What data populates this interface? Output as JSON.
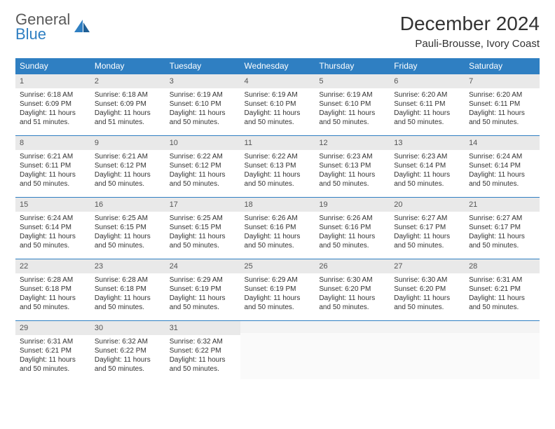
{
  "logo": {
    "top": "General",
    "bottom": "Blue"
  },
  "title": "December 2024",
  "location": "Pauli-Brousse, Ivory Coast",
  "colors": {
    "header_bg": "#2f7fc2",
    "header_text": "#ffffff",
    "daynum_bg": "#e9e9e9",
    "border": "#2f7fc2",
    "logo_blue": "#2f7fc2",
    "text": "#333333"
  },
  "weekdays": [
    "Sunday",
    "Monday",
    "Tuesday",
    "Wednesday",
    "Thursday",
    "Friday",
    "Saturday"
  ],
  "days": [
    {
      "n": "1",
      "sunrise": "Sunrise: 6:18 AM",
      "sunset": "Sunset: 6:09 PM",
      "daylight": "Daylight: 11 hours and 51 minutes."
    },
    {
      "n": "2",
      "sunrise": "Sunrise: 6:18 AM",
      "sunset": "Sunset: 6:09 PM",
      "daylight": "Daylight: 11 hours and 51 minutes."
    },
    {
      "n": "3",
      "sunrise": "Sunrise: 6:19 AM",
      "sunset": "Sunset: 6:10 PM",
      "daylight": "Daylight: 11 hours and 50 minutes."
    },
    {
      "n": "4",
      "sunrise": "Sunrise: 6:19 AM",
      "sunset": "Sunset: 6:10 PM",
      "daylight": "Daylight: 11 hours and 50 minutes."
    },
    {
      "n": "5",
      "sunrise": "Sunrise: 6:19 AM",
      "sunset": "Sunset: 6:10 PM",
      "daylight": "Daylight: 11 hours and 50 minutes."
    },
    {
      "n": "6",
      "sunrise": "Sunrise: 6:20 AM",
      "sunset": "Sunset: 6:11 PM",
      "daylight": "Daylight: 11 hours and 50 minutes."
    },
    {
      "n": "7",
      "sunrise": "Sunrise: 6:20 AM",
      "sunset": "Sunset: 6:11 PM",
      "daylight": "Daylight: 11 hours and 50 minutes."
    },
    {
      "n": "8",
      "sunrise": "Sunrise: 6:21 AM",
      "sunset": "Sunset: 6:11 PM",
      "daylight": "Daylight: 11 hours and 50 minutes."
    },
    {
      "n": "9",
      "sunrise": "Sunrise: 6:21 AM",
      "sunset": "Sunset: 6:12 PM",
      "daylight": "Daylight: 11 hours and 50 minutes."
    },
    {
      "n": "10",
      "sunrise": "Sunrise: 6:22 AM",
      "sunset": "Sunset: 6:12 PM",
      "daylight": "Daylight: 11 hours and 50 minutes."
    },
    {
      "n": "11",
      "sunrise": "Sunrise: 6:22 AM",
      "sunset": "Sunset: 6:13 PM",
      "daylight": "Daylight: 11 hours and 50 minutes."
    },
    {
      "n": "12",
      "sunrise": "Sunrise: 6:23 AM",
      "sunset": "Sunset: 6:13 PM",
      "daylight": "Daylight: 11 hours and 50 minutes."
    },
    {
      "n": "13",
      "sunrise": "Sunrise: 6:23 AM",
      "sunset": "Sunset: 6:14 PM",
      "daylight": "Daylight: 11 hours and 50 minutes."
    },
    {
      "n": "14",
      "sunrise": "Sunrise: 6:24 AM",
      "sunset": "Sunset: 6:14 PM",
      "daylight": "Daylight: 11 hours and 50 minutes."
    },
    {
      "n": "15",
      "sunrise": "Sunrise: 6:24 AM",
      "sunset": "Sunset: 6:14 PM",
      "daylight": "Daylight: 11 hours and 50 minutes."
    },
    {
      "n": "16",
      "sunrise": "Sunrise: 6:25 AM",
      "sunset": "Sunset: 6:15 PM",
      "daylight": "Daylight: 11 hours and 50 minutes."
    },
    {
      "n": "17",
      "sunrise": "Sunrise: 6:25 AM",
      "sunset": "Sunset: 6:15 PM",
      "daylight": "Daylight: 11 hours and 50 minutes."
    },
    {
      "n": "18",
      "sunrise": "Sunrise: 6:26 AM",
      "sunset": "Sunset: 6:16 PM",
      "daylight": "Daylight: 11 hours and 50 minutes."
    },
    {
      "n": "19",
      "sunrise": "Sunrise: 6:26 AM",
      "sunset": "Sunset: 6:16 PM",
      "daylight": "Daylight: 11 hours and 50 minutes."
    },
    {
      "n": "20",
      "sunrise": "Sunrise: 6:27 AM",
      "sunset": "Sunset: 6:17 PM",
      "daylight": "Daylight: 11 hours and 50 minutes."
    },
    {
      "n": "21",
      "sunrise": "Sunrise: 6:27 AM",
      "sunset": "Sunset: 6:17 PM",
      "daylight": "Daylight: 11 hours and 50 minutes."
    },
    {
      "n": "22",
      "sunrise": "Sunrise: 6:28 AM",
      "sunset": "Sunset: 6:18 PM",
      "daylight": "Daylight: 11 hours and 50 minutes."
    },
    {
      "n": "23",
      "sunrise": "Sunrise: 6:28 AM",
      "sunset": "Sunset: 6:18 PM",
      "daylight": "Daylight: 11 hours and 50 minutes."
    },
    {
      "n": "24",
      "sunrise": "Sunrise: 6:29 AM",
      "sunset": "Sunset: 6:19 PM",
      "daylight": "Daylight: 11 hours and 50 minutes."
    },
    {
      "n": "25",
      "sunrise": "Sunrise: 6:29 AM",
      "sunset": "Sunset: 6:19 PM",
      "daylight": "Daylight: 11 hours and 50 minutes."
    },
    {
      "n": "26",
      "sunrise": "Sunrise: 6:30 AM",
      "sunset": "Sunset: 6:20 PM",
      "daylight": "Daylight: 11 hours and 50 minutes."
    },
    {
      "n": "27",
      "sunrise": "Sunrise: 6:30 AM",
      "sunset": "Sunset: 6:20 PM",
      "daylight": "Daylight: 11 hours and 50 minutes."
    },
    {
      "n": "28",
      "sunrise": "Sunrise: 6:31 AM",
      "sunset": "Sunset: 6:21 PM",
      "daylight": "Daylight: 11 hours and 50 minutes."
    },
    {
      "n": "29",
      "sunrise": "Sunrise: 6:31 AM",
      "sunset": "Sunset: 6:21 PM",
      "daylight": "Daylight: 11 hours and 50 minutes."
    },
    {
      "n": "30",
      "sunrise": "Sunrise: 6:32 AM",
      "sunset": "Sunset: 6:22 PM",
      "daylight": "Daylight: 11 hours and 50 minutes."
    },
    {
      "n": "31",
      "sunrise": "Sunrise: 6:32 AM",
      "sunset": "Sunset: 6:22 PM",
      "daylight": "Daylight: 11 hours and 50 minutes."
    }
  ],
  "layout": {
    "weeks": 5,
    "start_weekday": 0,
    "trailing_empty": 4
  }
}
